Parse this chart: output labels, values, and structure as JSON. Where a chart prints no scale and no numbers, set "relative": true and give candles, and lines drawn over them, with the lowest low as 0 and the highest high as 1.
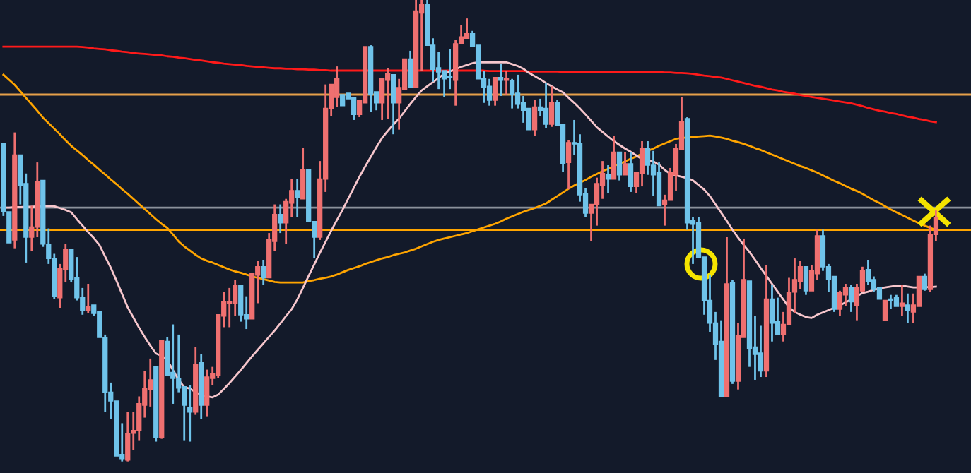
{
  "chart_data": {
    "type": "candlestick",
    "relative": true,
    "categories": [
      null,
      null,
      null,
      null,
      null,
      null,
      null,
      null,
      null,
      null,
      null,
      null,
      null,
      null,
      null,
      null,
      null,
      null,
      null,
      null,
      null,
      null,
      null,
      null,
      null,
      null,
      null,
      null,
      null,
      null,
      null,
      null,
      null,
      null,
      null,
      null,
      null,
      null,
      null,
      null,
      null,
      null,
      null,
      null,
      null,
      null,
      null,
      null,
      null,
      null,
      null,
      null,
      null,
      null,
      null,
      null,
      null,
      null,
      null,
      null,
      null,
      null,
      null,
      null,
      null,
      null,
      null,
      null,
      null,
      null,
      null,
      null,
      null,
      null,
      null,
      null,
      null,
      null,
      null,
      null,
      null,
      null,
      null,
      null,
      null,
      null,
      null,
      null,
      null,
      null,
      null,
      null,
      null,
      null,
      null,
      null,
      null,
      null,
      null,
      null,
      null,
      null,
      null,
      null,
      null,
      null,
      null,
      null,
      null,
      null,
      null,
      null,
      null,
      null,
      null,
      null,
      null,
      null,
      null,
      null,
      null,
      null,
      null,
      null,
      null,
      null,
      null,
      null,
      null,
      null,
      null,
      null,
      null,
      null,
      null,
      null,
      null,
      null,
      null,
      null,
      null,
      null,
      null,
      null,
      null,
      null,
      null,
      null,
      null,
      null,
      null,
      null,
      null,
      null,
      null,
      null,
      null,
      null,
      null,
      null,
      null,
      null,
      null,
      null,
      null,
      null
    ],
    "ohlc": [
      [
        0.688,
        0.688,
        0.532,
        0.541
      ],
      [
        0.541,
        0.541,
        0.474,
        0.474
      ],
      [
        0.48,
        0.713,
        0.462,
        0.664
      ],
      [
        0.664,
        0.664,
        0.557,
        0.599
      ],
      [
        0.602,
        0.624,
        0.431,
        0.486
      ],
      [
        0.486,
        0.554,
        0.456,
        0.508
      ],
      [
        0.508,
        0.648,
        0.486,
        0.606
      ],
      [
        0.609,
        0.609,
        0.465,
        0.471
      ],
      [
        0.471,
        0.505,
        0.428,
        0.44
      ],
      [
        0.44,
        0.45,
        0.352,
        0.358
      ],
      [
        0.355,
        0.428,
        0.333,
        0.419
      ],
      [
        0.416,
        0.471,
        0.388,
        0.459
      ],
      [
        0.459,
        0.459,
        0.388,
        0.394
      ],
      [
        0.398,
        0.443,
        0.349,
        0.355
      ],
      [
        0.355,
        0.376,
        0.318,
        0.327
      ],
      [
        0.327,
        0.385,
        0.321,
        0.336
      ],
      [
        0.339,
        0.339,
        0.315,
        0.321
      ],
      [
        0.324,
        0.324,
        0.269,
        0.269
      ],
      [
        0.269,
        0.275,
        0.107,
        0.15
      ],
      [
        0.15,
        0.171,
        0.092,
        0.131
      ],
      [
        0.131,
        0.131,
        0.012,
        0.012
      ],
      [
        0.015,
        0.083,
        0.0,
        0.006
      ],
      [
        0.003,
        0.107,
        0.0,
        0.061
      ],
      [
        0.061,
        0.107,
        0.024,
        0.067
      ],
      [
        0.067,
        0.141,
        0.046,
        0.125
      ],
      [
        0.122,
        0.196,
        0.095,
        0.159
      ],
      [
        0.156,
        0.223,
        0.119,
        0.177
      ],
      [
        0.205,
        0.205,
        0.043,
        0.052
      ],
      [
        0.052,
        0.263,
        0.049,
        0.263
      ],
      [
        0.26,
        0.269,
        0.187,
        0.187
      ],
      [
        0.193,
        0.297,
        0.125,
        0.18
      ],
      [
        0.18,
        0.275,
        0.15,
        0.159
      ],
      [
        0.162,
        0.162,
        0.046,
        0.122
      ],
      [
        0.116,
        0.165,
        0.043,
        0.107
      ],
      [
        0.107,
        0.248,
        0.101,
        0.211
      ],
      [
        0.214,
        0.232,
        0.092,
        0.122
      ],
      [
        0.122,
        0.199,
        0.098,
        0.183
      ],
      [
        0.18,
        0.205,
        0.165,
        0.19
      ],
      [
        0.187,
        0.318,
        0.18,
        0.318
      ],
      [
        0.315,
        0.367,
        0.291,
        0.346
      ],
      [
        0.343,
        0.376,
        0.291,
        0.346
      ],
      [
        0.343,
        0.394,
        0.315,
        0.382
      ],
      [
        0.382,
        0.382,
        0.303,
        0.318
      ],
      [
        0.318,
        0.358,
        0.287,
        0.309
      ],
      [
        0.309,
        0.407,
        0.309,
        0.407
      ],
      [
        0.404,
        0.434,
        0.343,
        0.422
      ],
      [
        0.422,
        0.437,
        0.382,
        0.398
      ],
      [
        0.398,
        0.495,
        0.398,
        0.48
      ],
      [
        0.477,
        0.557,
        0.456,
        0.535
      ],
      [
        0.535,
        0.557,
        0.495,
        0.517
      ],
      [
        0.517,
        0.569,
        0.471,
        0.563
      ],
      [
        0.56,
        0.612,
        0.529,
        0.587
      ],
      [
        0.587,
        0.612,
        0.529,
        0.572
      ],
      [
        0.569,
        0.679,
        0.569,
        0.633
      ],
      [
        0.633,
        0.633,
        0.52,
        0.52
      ],
      [
        0.52,
        0.52,
        0.44,
        0.486
      ],
      [
        0.486,
        0.651,
        0.48,
        0.612
      ],
      [
        0.612,
        0.817,
        0.584,
        0.765
      ],
      [
        0.765,
        0.817,
        0.749,
        0.817
      ],
      [
        0.789,
        0.856,
        0.768,
        0.829
      ],
      [
        0.795,
        0.795,
        0.771,
        0.771
      ],
      [
        0.798,
        0.798,
        0.786,
        0.786
      ],
      [
        0.789,
        0.789,
        0.74,
        0.752
      ],
      [
        0.752,
        0.783,
        0.746,
        0.783
      ],
      [
        0.777,
        0.899,
        0.777,
        0.899
      ],
      [
        0.899,
        0.902,
        0.758,
        0.795
      ],
      [
        0.801,
        0.801,
        0.761,
        0.777
      ],
      [
        0.777,
        0.829,
        0.74,
        0.829
      ],
      [
        0.826,
        0.853,
        0.743,
        0.841
      ],
      [
        0.838,
        0.838,
        0.709,
        0.777
      ],
      [
        0.777,
        0.829,
        0.719,
        0.81
      ],
      [
        0.807,
        0.872,
        0.807,
        0.872
      ],
      [
        0.872,
        0.89,
        0.81,
        0.81
      ],
      [
        0.81,
        1.0,
        0.81,
        0.976
      ],
      [
        0.972,
        1.0,
        0.847,
        0.991
      ],
      [
        0.991,
        1.0,
        0.902,
        0.902
      ],
      [
        0.902,
        0.917,
        0.823,
        0.85
      ],
      [
        0.853,
        0.887,
        0.807,
        0.844
      ],
      [
        0.847,
        0.847,
        0.789,
        0.829
      ],
      [
        0.835,
        0.893,
        0.807,
        0.832
      ],
      [
        0.826,
        0.914,
        0.771,
        0.905
      ],
      [
        0.905,
        0.945,
        0.905,
        0.92
      ],
      [
        0.917,
        0.96,
        0.917,
        0.927
      ],
      [
        0.927,
        0.933,
        0.899,
        0.899
      ],
      [
        0.902,
        0.902,
        0.829,
        0.829
      ],
      [
        0.829,
        0.847,
        0.777,
        0.81
      ],
      [
        0.813,
        0.829,
        0.771,
        0.783
      ],
      [
        0.783,
        0.832,
        0.771,
        0.832
      ],
      [
        0.832,
        0.862,
        0.792,
        0.826
      ],
      [
        0.826,
        0.847,
        0.795,
        0.829
      ],
      [
        0.826,
        0.829,
        0.765,
        0.795
      ],
      [
        0.798,
        0.838,
        0.765,
        0.774
      ],
      [
        0.777,
        0.792,
        0.734,
        0.761
      ],
      [
        0.765,
        0.765,
        0.719,
        0.719
      ],
      [
        0.719,
        0.783,
        0.706,
        0.768
      ],
      [
        0.768,
        0.786,
        0.749,
        0.761
      ],
      [
        0.765,
        0.82,
        0.722,
        0.731
      ],
      [
        0.731,
        0.813,
        0.725,
        0.777
      ],
      [
        0.777,
        0.783,
        0.728,
        0.728
      ],
      [
        0.731,
        0.731,
        0.627,
        0.645
      ],
      [
        0.648,
        0.697,
        0.59,
        0.691
      ],
      [
        0.691,
        0.74,
        0.664,
        0.688
      ],
      [
        0.688,
        0.709,
        0.563,
        0.578
      ],
      [
        0.581,
        0.593,
        0.529,
        0.538
      ],
      [
        0.538,
        0.557,
        0.477,
        0.557
      ],
      [
        0.557,
        0.615,
        0.511,
        0.602
      ],
      [
        0.599,
        0.651,
        0.569,
        0.624
      ],
      [
        0.621,
        0.642,
        0.581,
        0.612
      ],
      [
        0.612,
        0.706,
        0.612,
        0.67
      ],
      [
        0.67,
        0.67,
        0.609,
        0.621
      ],
      [
        0.621,
        0.67,
        0.621,
        0.645
      ],
      [
        0.645,
        0.67,
        0.584,
        0.596
      ],
      [
        0.596,
        0.627,
        0.581,
        0.627
      ],
      [
        0.624,
        0.694,
        0.596,
        0.679
      ],
      [
        0.679,
        0.694,
        0.621,
        0.642
      ],
      [
        0.642,
        0.673,
        0.575,
        0.621
      ],
      [
        0.627,
        0.648,
        0.554,
        0.554
      ],
      [
        0.557,
        0.578,
        0.511,
        0.566
      ],
      [
        0.566,
        0.636,
        0.566,
        0.627
      ],
      [
        0.621,
        0.688,
        0.587,
        0.679
      ],
      [
        0.676,
        0.789,
        0.676,
        0.737
      ],
      [
        0.743,
        0.746,
        0.502,
        0.517
      ],
      [
        0.523,
        0.529,
        0.428,
        0.514
      ],
      [
        0.517,
        0.529,
        0.443,
        0.443
      ],
      [
        0.443,
        0.443,
        0.318,
        0.349
      ],
      [
        0.349,
        0.404,
        0.281,
        0.3
      ],
      [
        0.3,
        0.324,
        0.22,
        0.254
      ],
      [
        0.26,
        0.306,
        0.141,
        0.141
      ],
      [
        0.141,
        0.486,
        0.141,
        0.385
      ],
      [
        0.388,
        0.394,
        0.168,
        0.174
      ],
      [
        0.174,
        0.3,
        0.156,
        0.272
      ],
      [
        0.269,
        0.483,
        0.269,
        0.394
      ],
      [
        0.391,
        0.391,
        0.205,
        0.245
      ],
      [
        0.248,
        0.315,
        0.177,
        0.232
      ],
      [
        0.235,
        0.294,
        0.183,
        0.196
      ],
      [
        0.196,
        0.425,
        0.183,
        0.352
      ],
      [
        0.352,
        0.382,
        0.26,
        0.3
      ],
      [
        0.303,
        0.355,
        0.275,
        0.275
      ],
      [
        0.275,
        0.324,
        0.26,
        0.297
      ],
      [
        0.297,
        0.398,
        0.297,
        0.367
      ],
      [
        0.367,
        0.44,
        0.321,
        0.394
      ],
      [
        0.391,
        0.434,
        0.373,
        0.422
      ],
      [
        0.422,
        0.422,
        0.361,
        0.37
      ],
      [
        0.37,
        0.425,
        0.37,
        0.413
      ],
      [
        0.407,
        0.502,
        0.394,
        0.489
      ],
      [
        0.489,
        0.502,
        0.413,
        0.422
      ],
      [
        0.422,
        0.428,
        0.367,
        0.394
      ],
      [
        0.401,
        0.401,
        0.324,
        0.33
      ],
      [
        0.33,
        0.37,
        0.315,
        0.367
      ],
      [
        0.361,
        0.385,
        0.336,
        0.376
      ],
      [
        0.376,
        0.382,
        0.324,
        0.346
      ],
      [
        0.339,
        0.385,
        0.306,
        0.376
      ],
      [
        0.37,
        0.422,
        0.367,
        0.413
      ],
      [
        0.416,
        0.437,
        0.382,
        0.391
      ],
      [
        0.394,
        0.401,
        0.367,
        0.373
      ],
      [
        0.376,
        0.376,
        0.352,
        0.352
      ],
      [
        0.306,
        0.349,
        0.306,
        0.349
      ],
      [
        0.352,
        0.361,
        0.33,
        0.349
      ],
      [
        0.355,
        0.361,
        0.336,
        0.336
      ],
      [
        0.336,
        0.382,
        0.315,
        0.343
      ],
      [
        0.339,
        0.364,
        0.3,
        0.327
      ],
      [
        0.324,
        0.364,
        0.3,
        0.339
      ],
      [
        0.336,
        0.401,
        0.336,
        0.401
      ],
      [
        0.401,
        0.407,
        0.37,
        0.373
      ],
      [
        0.373,
        0.511,
        0.367,
        0.492
      ],
      [
        0.492,
        0.544,
        0.477,
        0.529
      ]
    ],
    "colors": [
      "#6fc3ea",
      "#6fc3ea",
      "#ef7070",
      "#6fc3ea",
      "#6fc3ea",
      "#ef7070",
      "#ef7070",
      "#6fc3ea",
      "#6fc3ea",
      "#6fc3ea",
      "#ef7070",
      "#ef7070",
      "#6fc3ea",
      "#6fc3ea",
      "#6fc3ea",
      "#ef7070",
      "#6fc3ea",
      "#6fc3ea",
      "#6fc3ea",
      "#6fc3ea",
      "#6fc3ea",
      "#6fc3ea",
      "#ef7070",
      "#ef7070",
      "#ef7070",
      "#ef7070",
      "#ef7070",
      "#6fc3ea",
      "#ef7070",
      "#6fc3ea",
      "#6fc3ea",
      "#6fc3ea",
      "#6fc3ea",
      "#6fc3ea",
      "#ef7070",
      "#6fc3ea",
      "#ef7070",
      "#ef7070",
      "#ef7070",
      "#ef7070",
      "#ef7070",
      "#ef7070",
      "#6fc3ea",
      "#6fc3ea",
      "#ef7070",
      "#ef7070",
      "#6fc3ea",
      "#ef7070",
      "#ef7070",
      "#6fc3ea",
      "#ef7070",
      "#ef7070",
      "#6fc3ea",
      "#ef7070",
      "#6fc3ea",
      "#6fc3ea",
      "#ef7070",
      "#ef7070",
      "#ef7070",
      "#ef7070",
      "#6fc3ea",
      "#6fc3ea",
      "#6fc3ea",
      "#ef7070",
      "#ef7070",
      "#6fc3ea",
      "#6fc3ea",
      "#ef7070",
      "#ef7070",
      "#6fc3ea",
      "#ef7070",
      "#ef7070",
      "#6fc3ea",
      "#ef7070",
      "#ef7070",
      "#6fc3ea",
      "#6fc3ea",
      "#6fc3ea",
      "#6fc3ea",
      "#6fc3ea",
      "#ef7070",
      "#ef7070",
      "#ef7070",
      "#6fc3ea",
      "#6fc3ea",
      "#6fc3ea",
      "#6fc3ea",
      "#ef7070",
      "#6fc3ea",
      "#ef7070",
      "#6fc3ea",
      "#6fc3ea",
      "#6fc3ea",
      "#6fc3ea",
      "#ef7070",
      "#6fc3ea",
      "#6fc3ea",
      "#ef7070",
      "#6fc3ea",
      "#6fc3ea",
      "#ef7070",
      "#6fc3ea",
      "#6fc3ea",
      "#6fc3ea",
      "#ef7070",
      "#ef7070",
      "#ef7070",
      "#6fc3ea",
      "#ef7070",
      "#6fc3ea",
      "#ef7070",
      "#6fc3ea",
      "#ef7070",
      "#ef7070",
      "#6fc3ea",
      "#6fc3ea",
      "#6fc3ea",
      "#ef7070",
      "#ef7070",
      "#ef7070",
      "#ef7070",
      "#6fc3ea",
      "#6fc3ea",
      "#6fc3ea",
      "#6fc3ea",
      "#6fc3ea",
      "#6fc3ea",
      "#6fc3ea",
      "#ef7070",
      "#6fc3ea",
      "#ef7070",
      "#ef7070",
      "#6fc3ea",
      "#6fc3ea",
      "#6fc3ea",
      "#ef7070",
      "#6fc3ea",
      "#6fc3ea",
      "#ef7070",
      "#ef7070",
      "#ef7070",
      "#ef7070",
      "#6fc3ea",
      "#ef7070",
      "#ef7070",
      "#6fc3ea",
      "#6fc3ea",
      "#6fc3ea",
      "#ef7070",
      "#ef7070",
      "#6fc3ea",
      "#ef7070",
      "#ef7070",
      "#6fc3ea",
      "#6fc3ea",
      "#6fc3ea",
      "#ef7070",
      "#6fc3ea",
      "#6fc3ea",
      "#ef7070",
      "#6fc3ea",
      "#ef7070",
      "#ef7070",
      "#6fc3ea",
      "#ef7070",
      "#ef7070"
    ],
    "series": [
      {
        "type": "line",
        "color": "#ff1a1a",
        "values": [
          0.899,
          0.899,
          0.899,
          0.899,
          0.899,
          0.899,
          0.899,
          0.899,
          0.899,
          0.899,
          0.899,
          0.899,
          0.899,
          0.899,
          0.898,
          0.897,
          0.895,
          0.894,
          0.893,
          0.891,
          0.89,
          0.888,
          0.887,
          0.885,
          0.884,
          0.883,
          0.882,
          0.881,
          0.88,
          0.878,
          0.877,
          0.875,
          0.874,
          0.872,
          0.87,
          0.869,
          0.867,
          0.865,
          0.864,
          0.862,
          0.861,
          0.86,
          0.859,
          0.857,
          0.856,
          0.855,
          0.854,
          0.853,
          0.852,
          0.852,
          0.851,
          0.851,
          0.85,
          0.85,
          0.849,
          0.849,
          0.848,
          0.848,
          0.847,
          0.847,
          0.847,
          0.847,
          0.847,
          0.847,
          0.847,
          0.847,
          0.847,
          0.847,
          0.847,
          0.847,
          0.847,
          0.847,
          0.847,
          0.847,
          0.847,
          0.847,
          0.847,
          0.847,
          0.847,
          0.847,
          0.847,
          0.847,
          0.847,
          0.847,
          0.847,
          0.847,
          0.846,
          0.846,
          0.846,
          0.846,
          0.846,
          0.846,
          0.846,
          0.845,
          0.845,
          0.845,
          0.845,
          0.845,
          0.845,
          0.844,
          0.844,
          0.844,
          0.844,
          0.844,
          0.844,
          0.844,
          0.844,
          0.844,
          0.844,
          0.844,
          0.844,
          0.844,
          0.844,
          0.844,
          0.844,
          0.844,
          0.844,
          0.843,
          0.843,
          0.842,
          0.842,
          0.841,
          0.84,
          0.838,
          0.836,
          0.835,
          0.833,
          0.832,
          0.829,
          0.826,
          0.823,
          0.82,
          0.817,
          0.814,
          0.812,
          0.809,
          0.806,
          0.804,
          0.801,
          0.799,
          0.797,
          0.794,
          0.792,
          0.79,
          0.788,
          0.786,
          0.784,
          0.782,
          0.78,
          0.778,
          0.776,
          0.773,
          0.77,
          0.766,
          0.763,
          0.76,
          0.758,
          0.755,
          0.753,
          0.75,
          0.747,
          0.745,
          0.742,
          0.74,
          0.737,
          0.735
        ]
      },
      {
        "type": "line",
        "color": "#ffa500",
        "values": [
          0.838,
          0.827,
          0.816,
          0.802,
          0.788,
          0.774,
          0.76,
          0.745,
          0.733,
          0.721,
          0.709,
          0.696,
          0.684,
          0.674,
          0.664,
          0.653,
          0.643,
          0.632,
          0.622,
          0.611,
          0.601,
          0.59,
          0.58,
          0.569,
          0.558,
          0.547,
          0.536,
          0.525,
          0.515,
          0.506,
          0.492,
          0.477,
          0.466,
          0.457,
          0.448,
          0.44,
          0.435,
          0.431,
          0.426,
          0.421,
          0.416,
          0.412,
          0.409,
          0.405,
          0.401,
          0.398,
          0.395,
          0.392,
          0.389,
          0.388,
          0.388,
          0.388,
          0.388,
          0.388,
          0.391,
          0.393,
          0.396,
          0.398,
          0.401,
          0.405,
          0.41,
          0.415,
          0.419,
          0.423,
          0.428,
          0.432,
          0.436,
          0.44,
          0.443,
          0.447,
          0.45,
          0.453,
          0.457,
          0.461,
          0.466,
          0.471,
          0.476,
          0.48,
          0.483,
          0.486,
          0.489,
          0.492,
          0.495,
          0.499,
          0.503,
          0.507,
          0.511,
          0.515,
          0.52,
          0.526,
          0.531,
          0.536,
          0.541,
          0.545,
          0.549,
          0.554,
          0.559,
          0.567,
          0.575,
          0.583,
          0.591,
          0.598,
          0.604,
          0.61,
          0.617,
          0.623,
          0.629,
          0.634,
          0.64,
          0.645,
          0.65,
          0.656,
          0.661,
          0.667,
          0.673,
          0.678,
          0.684,
          0.689,
          0.694,
          0.699,
          0.701,
          0.702,
          0.703,
          0.704,
          0.705,
          0.706,
          0.704,
          0.702,
          0.699,
          0.695,
          0.692,
          0.688,
          0.684,
          0.679,
          0.675,
          0.67,
          0.665,
          0.66,
          0.655,
          0.65,
          0.645,
          0.64,
          0.636,
          0.631,
          0.626,
          0.62,
          0.614,
          0.608,
          0.603,
          0.597,
          0.591,
          0.586,
          0.58,
          0.573,
          0.566,
          0.56,
          0.553,
          0.546,
          0.54,
          0.534,
          0.528,
          0.522,
          0.516,
          0.511,
          0.506,
          0.502
        ]
      },
      {
        "type": "line",
        "color": "#f6c6cc",
        "values": [
          0.55,
          0.55,
          0.551,
          0.551,
          0.552,
          0.552,
          0.553,
          0.553,
          0.554,
          0.553,
          0.549,
          0.545,
          0.54,
          0.525,
          0.511,
          0.497,
          0.484,
          0.469,
          0.444,
          0.42,
          0.392,
          0.363,
          0.334,
          0.312,
          0.29,
          0.27,
          0.251,
          0.234,
          0.229,
          0.22,
          0.198,
          0.177,
          0.161,
          0.158,
          0.15,
          0.144,
          0.141,
          0.139,
          0.145,
          0.157,
          0.17,
          0.184,
          0.198,
          0.213,
          0.228,
          0.242,
          0.256,
          0.27,
          0.284,
          0.299,
          0.315,
          0.33,
          0.351,
          0.376,
          0.402,
          0.427,
          0.452,
          0.476,
          0.5,
          0.523,
          0.545,
          0.569,
          0.593,
          0.617,
          0.639,
          0.66,
          0.681,
          0.701,
          0.716,
          0.73,
          0.743,
          0.759,
          0.775,
          0.79,
          0.804,
          0.813,
          0.822,
          0.831,
          0.84,
          0.845,
          0.85,
          0.855,
          0.859,
          0.863,
          0.865,
          0.865,
          0.865,
          0.865,
          0.865,
          0.865,
          0.861,
          0.857,
          0.851,
          0.842,
          0.835,
          0.828,
          0.82,
          0.813,
          0.806,
          0.8,
          0.788,
          0.777,
          0.765,
          0.752,
          0.738,
          0.724,
          0.714,
          0.704,
          0.694,
          0.686,
          0.678,
          0.671,
          0.663,
          0.655,
          0.652,
          0.65,
          0.643,
          0.632,
          0.623,
          0.62,
          0.617,
          0.614,
          0.609,
          0.599,
          0.589,
          0.575,
          0.557,
          0.539,
          0.521,
          0.502,
          0.485,
          0.469,
          0.454,
          0.437,
          0.419,
          0.402,
          0.385,
          0.368,
          0.351,
          0.334,
          0.324,
          0.318,
          0.313,
          0.311,
          0.318,
          0.323,
          0.328,
          0.333,
          0.338,
          0.345,
          0.351,
          0.358,
          0.365,
          0.368,
          0.372,
          0.375,
          0.377,
          0.379,
          0.381,
          0.381,
          0.379,
          0.377,
          0.377,
          0.378,
          0.378,
          0.379
        ]
      }
    ],
    "ref_lines": [
      {
        "axis": "y",
        "value": 0.795,
        "color": "#e6a04a"
      },
      {
        "axis": "y",
        "value": 0.55,
        "color": "#8c929c"
      },
      {
        "axis": "y",
        "value": 0.502,
        "color": "#ffa500"
      }
    ]
  }
}
